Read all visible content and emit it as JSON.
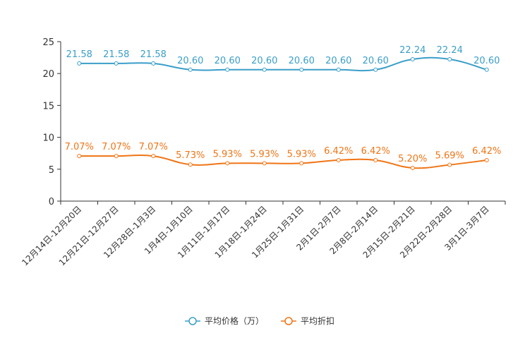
{
  "chart_data": {
    "type": "line",
    "categories": [
      "12月14日-12月20日",
      "12月21日-12月27日",
      "12月28日-1月3日",
      "1月4日-1月10日",
      "1月11日-1月17日",
      "1月18日-1月24日",
      "1月25日-1月31日",
      "2月1日-2月7日",
      "2月8日-2月14日",
      "2月15日-2月21日",
      "2月22日-2月28日",
      "3月1日-3月7日"
    ],
    "series": [
      {
        "name": "平均价格（万）",
        "values": [
          21.58,
          21.58,
          21.58,
          20.6,
          20.6,
          20.6,
          20.6,
          20.6,
          20.6,
          22.24,
          22.24,
          20.6
        ],
        "labels": [
          "21.58",
          "21.58",
          "21.58",
          "20.60",
          "20.60",
          "20.60",
          "20.60",
          "20.60",
          "20.60",
          "22.24",
          "22.24",
          "20.60"
        ],
        "color": "#3a9ec9"
      },
      {
        "name": "平均折扣",
        "values": [
          7.07,
          7.07,
          7.07,
          5.73,
          5.93,
          5.93,
          5.93,
          6.42,
          6.42,
          5.2,
          5.69,
          6.42
        ],
        "labels": [
          "7.07%",
          "7.07%",
          "7.07%",
          "5.73%",
          "5.93%",
          "5.93%",
          "5.93%",
          "6.42%",
          "6.42%",
          "5.20%",
          "5.69%",
          "6.42%"
        ],
        "color": "#f07516"
      }
    ],
    "yticks": [
      "0",
      "5",
      "10",
      "15",
      "20",
      "25"
    ],
    "ylim": [
      0,
      25
    ],
    "title": "",
    "xlabel": "",
    "ylabel": "",
    "legend": "bottom-center"
  }
}
